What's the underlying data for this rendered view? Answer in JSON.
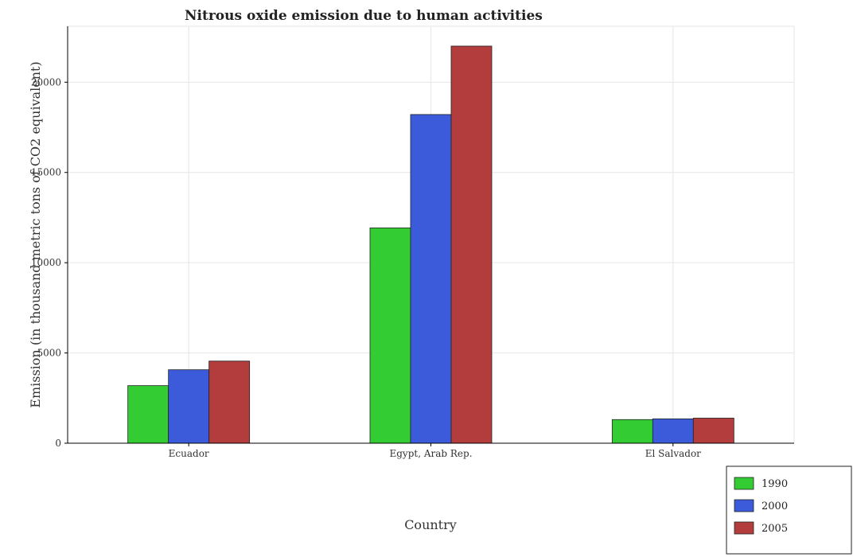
{
  "chart_data": {
    "type": "bar",
    "title": "Nitrous oxide emission due to human activities",
    "xlabel": "Country",
    "ylabel": "Emission (in thousand metric tons of CO2 equivalent)",
    "categories": [
      "Ecuador",
      "Egypt, Arab Rep.",
      "El Salvador"
    ],
    "series": [
      {
        "name": "1990",
        "color": "#33cc33",
        "values": [
          3190,
          11930,
          1310
        ]
      },
      {
        "name": "2000",
        "color": "#3b5bdb",
        "values": [
          4070,
          18210,
          1350
        ]
      },
      {
        "name": "2005",
        "color": "#b33c3c",
        "values": [
          4550,
          22000,
          1390
        ]
      }
    ],
    "yticks": [
      0,
      5000,
      10000,
      15000,
      20000
    ],
    "ylim": [
      0,
      23100
    ],
    "grid": true,
    "legend_position": "bottom-right"
  }
}
